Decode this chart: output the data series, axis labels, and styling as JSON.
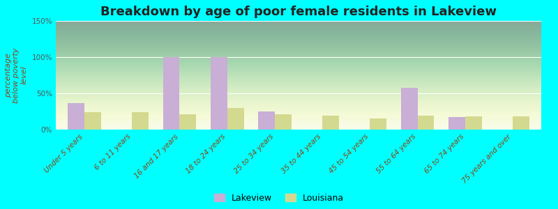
{
  "title": "Breakdown by age of poor female residents in Lakeview",
  "ylabel": "percentage\nbelow poverty\nlevel",
  "categories": [
    "Under 5 years",
    "6 to 11 years",
    "16 and 17 years",
    "18 to 24 years",
    "25 to 34 years",
    "35 to 44 years",
    "45 to 54 years",
    "55 to 64 years",
    "65 to 74 years",
    "75 years and over"
  ],
  "lakeview_values": [
    37,
    0,
    100,
    100,
    25,
    0,
    0,
    58,
    17,
    0
  ],
  "louisiana_values": [
    24,
    24,
    21,
    30,
    21,
    19,
    15,
    19,
    18,
    18
  ],
  "lakeview_color": "#c9aed6",
  "louisiana_color": "#d4d990",
  "ylim": [
    0,
    150
  ],
  "yticks": [
    0,
    50,
    100,
    150
  ],
  "ytick_labels": [
    "0%",
    "50%",
    "100%",
    "150%"
  ],
  "bar_width": 0.35,
  "title_fontsize": 13,
  "axis_label_fontsize": 8,
  "tick_fontsize": 7.5,
  "legend_labels": [
    "Lakeview",
    "Louisiana"
  ],
  "outer_bg": "#00ffff",
  "plot_bg_top": "#f5faf0",
  "plot_bg_bottom": "#d8edd8"
}
